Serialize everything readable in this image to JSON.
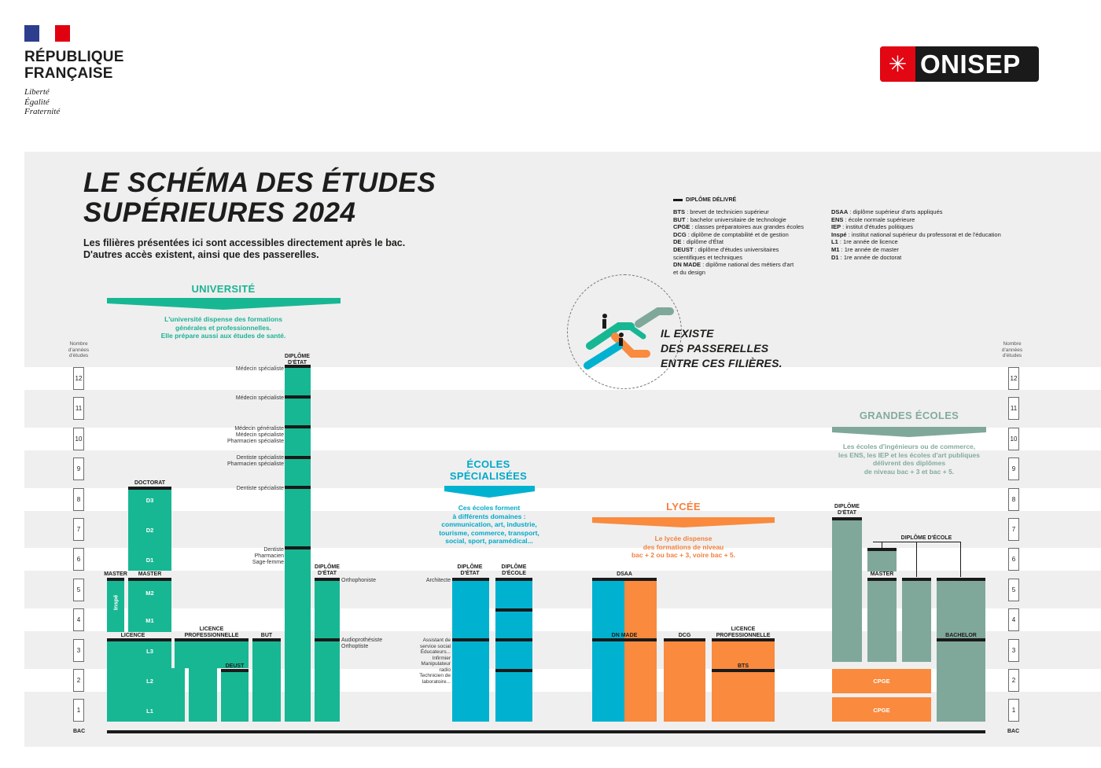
{
  "header": {
    "republic_line1": "RÉPUBLIQUE",
    "republic_line2": "FRANÇAISE",
    "motto": [
      "Liberté",
      "Égalité",
      "Fraternité"
    ],
    "onisep_logo": "ONISEP",
    "onisep_icon": "onisep-sun-icon"
  },
  "colors": {
    "university": "#18b793",
    "specialized": "#00b2d0",
    "lycee": "#f98a3e",
    "grandes_ecoles": "#7fa89a",
    "flag_blue": "#2d3e8f",
    "flag_red": "#e1000f"
  },
  "title": {
    "line1": "LE SCHÉMA DES ÉTUDES",
    "line2": "SUPÉRIEURES 2024",
    "subtitle1": "Les filières présentées ici sont accessibles directement après le bac.",
    "subtitle2": "D'autres accès existent, ainsi que des passerelles."
  },
  "legend": {
    "key_label": "DIPLÔME DÉLIVRÉ",
    "col1": [
      {
        "abbr": "BTS",
        "text": "brevet de technicien supérieur"
      },
      {
        "abbr": "BUT",
        "text": "bachelor universitaire de technologie"
      },
      {
        "abbr": "CPGE",
        "text": "classes préparatoires aux grandes écoles"
      },
      {
        "abbr": "DCG",
        "text": "diplôme de comptabilité et de gestion"
      },
      {
        "abbr": "DE",
        "text": "diplôme d'État"
      },
      {
        "abbr": "DEUST",
        "text": "diplôme d'études universitaires"
      },
      {
        "abbr": "",
        "text": "scientifiques et techniques"
      },
      {
        "abbr": "DN MADE",
        "text": "diplôme national des métiers d'art"
      },
      {
        "abbr": "",
        "text": "et du design"
      }
    ],
    "col2": [
      {
        "abbr": "DSAA",
        "text": "diplôme supérieur d'arts appliqués"
      },
      {
        "abbr": "ENS",
        "text": "école normale supérieure"
      },
      {
        "abbr": "IEP",
        "text": "institut d'études politiques"
      },
      {
        "abbr": "Inspé",
        "text": "institut national supérieur du professorat et de l'éducation"
      },
      {
        "abbr": "L1",
        "text": "1re année de licence"
      },
      {
        "abbr": "M1",
        "text": "1re année de master"
      },
      {
        "abbr": "D1",
        "text": "1re année de doctorat"
      }
    ]
  },
  "axis": {
    "label": "Nombre d'années d'études",
    "years": [
      "12",
      "11",
      "10",
      "9",
      "8",
      "7",
      "6",
      "5",
      "4",
      "3",
      "2",
      "1"
    ],
    "bac": "BAC"
  },
  "sections": {
    "university": {
      "title": "UNIVERSITÉ",
      "desc1": "L'université dispense des formations",
      "desc2": "générales et professionnelles.",
      "desc3": "Elle prépare aussi aux études de santé."
    },
    "specialized": {
      "title1": "ÉCOLES",
      "title2": "SPÉCIALISÉES",
      "desc": [
        "Ces écoles forment",
        "à différents domaines :",
        "communication, art, industrie,",
        "tourisme, commerce, transport,",
        "social, sport, paramédical..."
      ]
    },
    "lycee": {
      "title": "LYCÉE",
      "desc": [
        "Le lycée dispense",
        "des formations de niveau",
        "bac + 2 ou bac + 3, voire bac + 5."
      ]
    },
    "grandes_ecoles": {
      "title": "GRANDES ÉCOLES",
      "desc": [
        "Les écoles d'ingénieurs ou de commerce,",
        "les ENS, les IEP et les écoles d'art publiques",
        "délivrent des diplômes",
        "de niveau bac + 3 et bac + 5."
      ]
    }
  },
  "passerelles": {
    "line1": "IL EXISTE",
    "line2": "DES PASSERELLES",
    "line3": "ENTRE CES FILIÈRES.",
    "icon": "escalator-people-icon"
  },
  "university_bars": {
    "doctorat": "DOCTORAT",
    "d3": "D3",
    "d2": "D2",
    "d1": "D1",
    "master_left": "MASTER",
    "master_right": "MASTER",
    "inspe": "Inspé",
    "m2": "M2",
    "m1": "M1",
    "licence": "LICENCE",
    "l3": "L3",
    "l2": "L2",
    "l1": "L1",
    "licence_pro": "LICENCE\nPROFESSIONNELLE",
    "deust": "DEUST",
    "but": "BUT",
    "diplome_etat": "DIPLÔME\nD'ÉTAT",
    "diplome_etat2": "DIPLÔME\nD'ÉTAT",
    "medecine_labels": [
      "Médecin spécialiste",
      "Médecin spécialiste",
      "Médecin généraliste",
      "Médecin spécialiste",
      "Pharmacien spécialiste",
      "Dentiste spécialiste",
      "Pharmacien spécialiste",
      "Dentiste spécialiste",
      "Dentiste",
      "Pharmacien",
      "Sage-femme"
    ],
    "orthophoniste": "Orthophoniste",
    "audio": "Audioprothésiste",
    "orthoptiste": "Orthoptiste"
  },
  "specialized_bars": {
    "diplome_etat": "DIPLÔME\nD'ÉTAT",
    "diplome_ecole": "DIPLÔME\nD'ÉCOLE",
    "architecte": "Architecte",
    "side_labels": [
      "Assistant de",
      "service social",
      "Éducateurs...",
      "Infirmier",
      "Manipulateur",
      "radio",
      "Technicien de",
      "laboratoire..."
    ]
  },
  "lycee_bars": {
    "dsaa": "DSAA",
    "dn_made": "DN MADE",
    "dcg": "DCG",
    "licence_pro": "LICENCE\nPROFESSIONNELLE",
    "bts": "BTS"
  },
  "ge_bars": {
    "diplome_etat": "DIPLÔME\nD'ÉTAT",
    "diplome_ecole": "DIPLÔME D'ÉCOLE",
    "master": "MASTER",
    "bachelor": "BACHELOR",
    "cpge_top": "CPGE",
    "cpge_bottom": "CPGE"
  }
}
